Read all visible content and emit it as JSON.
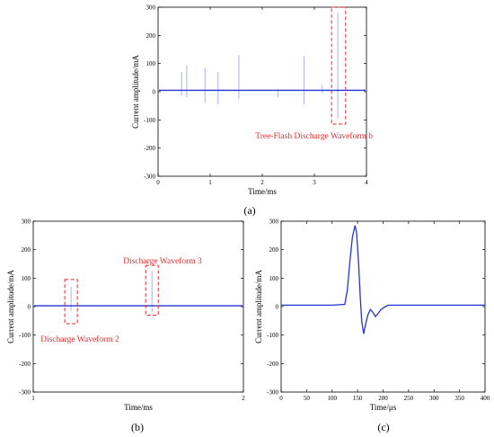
{
  "colors": {
    "trace": "#2533d6",
    "spike": "#a9b2f0",
    "annotation": "#e8292b",
    "axis": "#000000"
  },
  "panels": {
    "a": "(a)",
    "b": "(b)",
    "c": "(c)"
  },
  "chart_data": [
    {
      "id": "a",
      "type": "line",
      "xlabel": "Time/ms",
      "ylabel": "Current amplitude/mA",
      "xlim": [
        0,
        4
      ],
      "ylim": [
        -300,
        300
      ],
      "xticks": [
        0,
        1,
        2,
        3,
        4
      ],
      "yticks": [
        -300,
        -200,
        -100,
        0,
        100,
        200,
        300
      ],
      "baseline": 5,
      "pulses": [
        {
          "x": 0.45,
          "max": 70,
          "min": -15
        },
        {
          "x": 0.55,
          "max": 95,
          "min": -20
        },
        {
          "x": 0.9,
          "max": 85,
          "min": -40
        },
        {
          "x": 1.15,
          "max": 70,
          "min": -45
        },
        {
          "x": 1.55,
          "max": 130,
          "min": -25
        },
        {
          "x": 2.3,
          "max": 10,
          "min": -20
        },
        {
          "x": 2.8,
          "max": 125,
          "min": -45
        },
        {
          "x": 3.15,
          "max": 25,
          "min": -5
        },
        {
          "x": 3.45,
          "max": 280,
          "min": -95
        }
      ],
      "annotation": {
        "text": "Tree-Flash Discharge Waveform b",
        "x1": 3.33,
        "x2": 3.6,
        "y1": -115,
        "y2": 300
      }
    },
    {
      "id": "b",
      "type": "line",
      "xlabel": "Time/ms",
      "ylabel": "Current amplitude/mA",
      "xlim": [
        1,
        2
      ],
      "ylim": [
        -300,
        300
      ],
      "xticks": [
        1,
        2
      ],
      "yticks": [
        -300,
        -200,
        -100,
        0,
        100,
        200,
        300
      ],
      "baseline": 3,
      "pulses": [
        {
          "x": 1.18,
          "max": 70,
          "min": -15
        },
        {
          "x": 1.565,
          "max": 125,
          "min": -20
        }
      ],
      "annotations": [
        {
          "text": "Discharge Waveform 2",
          "x1": 1.15,
          "x2": 1.21,
          "y1": -60,
          "y2": 95
        },
        {
          "text": "Discharge Waveform 3",
          "x1": 1.535,
          "x2": 1.595,
          "y1": -30,
          "y2": 145
        }
      ]
    },
    {
      "id": "c",
      "type": "line",
      "xlabel": "Time/μs",
      "ylabel": "Current amplitude/mA",
      "xlim": [
        0,
        400
      ],
      "ylim": [
        -300,
        300
      ],
      "xticks": [
        0,
        50,
        100,
        150,
        200,
        250,
        300,
        350,
        400
      ],
      "yticks": [
        -300,
        -200,
        -100,
        0,
        100,
        200,
        300
      ],
      "series": [
        {
          "x": [
            0,
            100,
            125,
            130,
            135,
            140,
            145,
            148,
            152,
            155,
            158,
            162,
            166,
            170,
            175,
            180,
            185,
            190,
            195,
            200,
            205,
            210,
            220,
            400
          ],
          "y": [
            5,
            5,
            8,
            60,
            160,
            245,
            285,
            260,
            150,
            40,
            -50,
            -95,
            -60,
            -30,
            -10,
            -20,
            -35,
            -25,
            -12,
            -5,
            0,
            5,
            5,
            5
          ]
        }
      ]
    }
  ]
}
